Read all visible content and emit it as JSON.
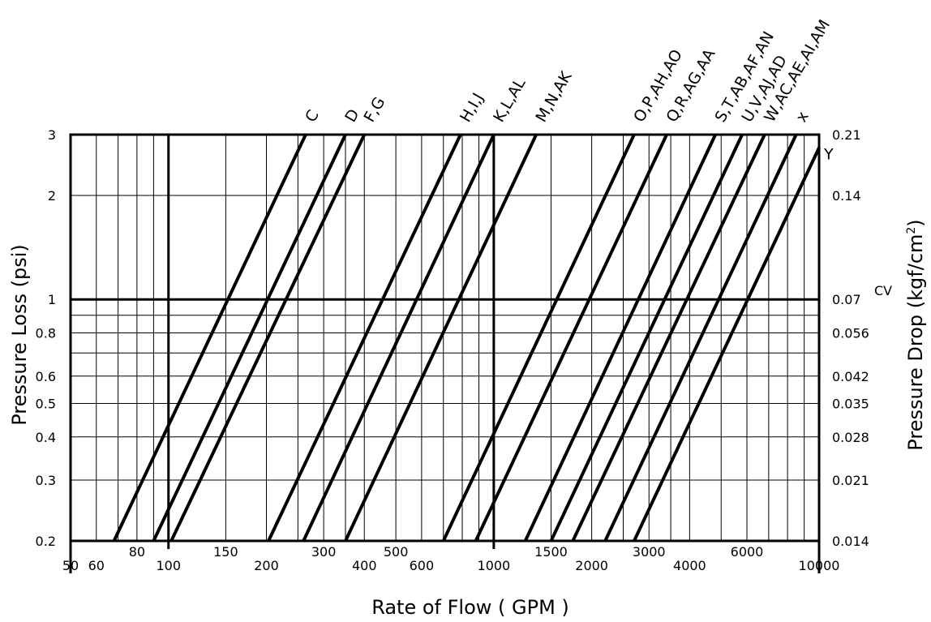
{
  "chart_data": {
    "type": "line",
    "x_scale": "log",
    "y_scale": "log",
    "grid": true,
    "xlabel": "Rate of Flow ( GPM )",
    "ylabel": "Pressure Loss (psi)",
    "ylabel_right": "Pressure Drop (kgf/cm",
    "ylabel_right_sup": "2",
    "ylabel_right_close": ")",
    "xlim": [
      50,
      10000
    ],
    "ylim": [
      0.2,
      3
    ],
    "x_ticks_bottom": [
      {
        "value": 50,
        "label": "50"
      },
      {
        "value": 60,
        "label": "60"
      },
      {
        "value": 100,
        "label": "100"
      },
      {
        "value": 200,
        "label": "200"
      },
      {
        "value": 400,
        "label": "400"
      },
      {
        "value": 600,
        "label": "600"
      },
      {
        "value": 1000,
        "label": "1000"
      },
      {
        "value": 2000,
        "label": "2000"
      },
      {
        "value": 4000,
        "label": "4000"
      },
      {
        "value": 10000,
        "label": "10000"
      }
    ],
    "x_ticks_upper": [
      {
        "value": 80,
        "label": "80"
      },
      {
        "value": 150,
        "label": "150"
      },
      {
        "value": 300,
        "label": "300"
      },
      {
        "value": 500,
        "label": "500"
      },
      {
        "value": 1500,
        "label": "1500"
      },
      {
        "value": 3000,
        "label": "3000"
      },
      {
        "value": 6000,
        "label": "6000"
      }
    ],
    "x_gridlines": [
      60,
      70,
      80,
      90,
      100,
      150,
      200,
      250,
      300,
      350,
      400,
      500,
      600,
      700,
      800,
      900,
      1000,
      1500,
      2000,
      2500,
      3000,
      3500,
      4000,
      5000,
      6000,
      7000,
      8000,
      9000,
      10000
    ],
    "x_major": [
      100,
      1000
    ],
    "y_ticks_left": [
      {
        "value": 0.2,
        "label": "0.2"
      },
      {
        "value": 0.3,
        "label": "0.3"
      },
      {
        "value": 0.4,
        "label": "0.4"
      },
      {
        "value": 0.5,
        "label": "0.5"
      },
      {
        "value": 0.6,
        "label": "0.6"
      },
      {
        "value": 0.8,
        "label": "0.8"
      },
      {
        "value": 1,
        "label": "1"
      },
      {
        "value": 2,
        "label": "2"
      },
      {
        "value": 3,
        "label": "3"
      }
    ],
    "y_ticks_right": [
      {
        "value": 0.2,
        "label": "0.014"
      },
      {
        "value": 0.3,
        "label": "0.021"
      },
      {
        "value": 0.4,
        "label": "0.028"
      },
      {
        "value": 0.5,
        "label": "0.035"
      },
      {
        "value": 0.6,
        "label": "0.042"
      },
      {
        "value": 0.8,
        "label": "0.056"
      },
      {
        "value": 1,
        "label": "0.07"
      },
      {
        "value": 2,
        "label": "0.14"
      },
      {
        "value": 3,
        "label": "0.21"
      }
    ],
    "y_gridlines": [
      0.2,
      0.3,
      0.4,
      0.5,
      0.6,
      0.7,
      0.8,
      0.9,
      1,
      2,
      3
    ],
    "y_major": [
      1
    ],
    "cv_label": "CV",
    "cv_at_y": 1,
    "series": [
      {
        "name": "C",
        "points": [
          [
            68,
            0.2
          ],
          [
            264,
            3
          ]
        ]
      },
      {
        "name": "D",
        "points": [
          [
            90,
            0.2
          ],
          [
            350,
            3
          ]
        ]
      },
      {
        "name": "F,G",
        "points": [
          [
            102,
            0.2
          ],
          [
            400,
            3
          ]
        ]
      },
      {
        "name": "",
        "points": [
          [
            203,
            0.2
          ],
          [
            790,
            3
          ]
        ]
      },
      {
        "name": "H,I,J",
        "points": [
          [
            260,
            0.2
          ],
          [
            1000,
            3
          ]
        ]
      },
      {
        "name": "K,L,AL",
        "points": [
          [
            350,
            0.2
          ],
          [
            1350,
            3
          ]
        ]
      },
      {
        "name": "M,N,AK",
        "points": [
          [
            700,
            0.2
          ],
          [
            2700,
            3
          ]
        ]
      },
      {
        "name": "",
        "points": [
          [
            880,
            0.2
          ],
          [
            3400,
            3
          ]
        ]
      },
      {
        "name": "O,P,AH,AO",
        "points": [
          [
            1250,
            0.2
          ],
          [
            4800,
            3
          ]
        ]
      },
      {
        "name": "Q,R,AG,AA",
        "points": [
          [
            1500,
            0.2
          ],
          [
            5800,
            3
          ]
        ]
      },
      {
        "name": "S,T,AB,AF,AN",
        "points": [
          [
            1750,
            0.2
          ],
          [
            6800,
            3
          ]
        ]
      },
      {
        "name": "U,V,AJ,AD",
        "points": [
          [
            2200,
            0.2
          ],
          [
            8500,
            3
          ]
        ]
      },
      {
        "name": "W,AC,AE,AI,AM",
        "points": [
          [
            2700,
            0.2
          ],
          [
            10000,
            2.75
          ]
        ]
      }
    ],
    "top_labels": [
      {
        "text": "C",
        "x": 264
      },
      {
        "text": "D",
        "x": 350
      },
      {
        "text": "F,G",
        "x": 400
      },
      {
        "text": "H,I,J",
        "x": 790
      },
      {
        "text": "K,L,AL",
        "x": 1000
      },
      {
        "text": "M,N,AK",
        "x": 1350
      },
      {
        "text": "O,P,AH,AO",
        "x": 2700
      },
      {
        "text": "Q,R,AG,AA",
        "x": 3400
      },
      {
        "text": "S,T,AB,AF,AN",
        "x": 4800
      },
      {
        "text": "U,V,AJ,AD",
        "x": 5800
      },
      {
        "text": "W,AC,AE,AI,AM",
        "x": 6800
      },
      {
        "text": "x",
        "x": 8500
      }
    ],
    "side_labels": [
      {
        "text": "Y",
        "y": 2.6
      }
    ]
  }
}
